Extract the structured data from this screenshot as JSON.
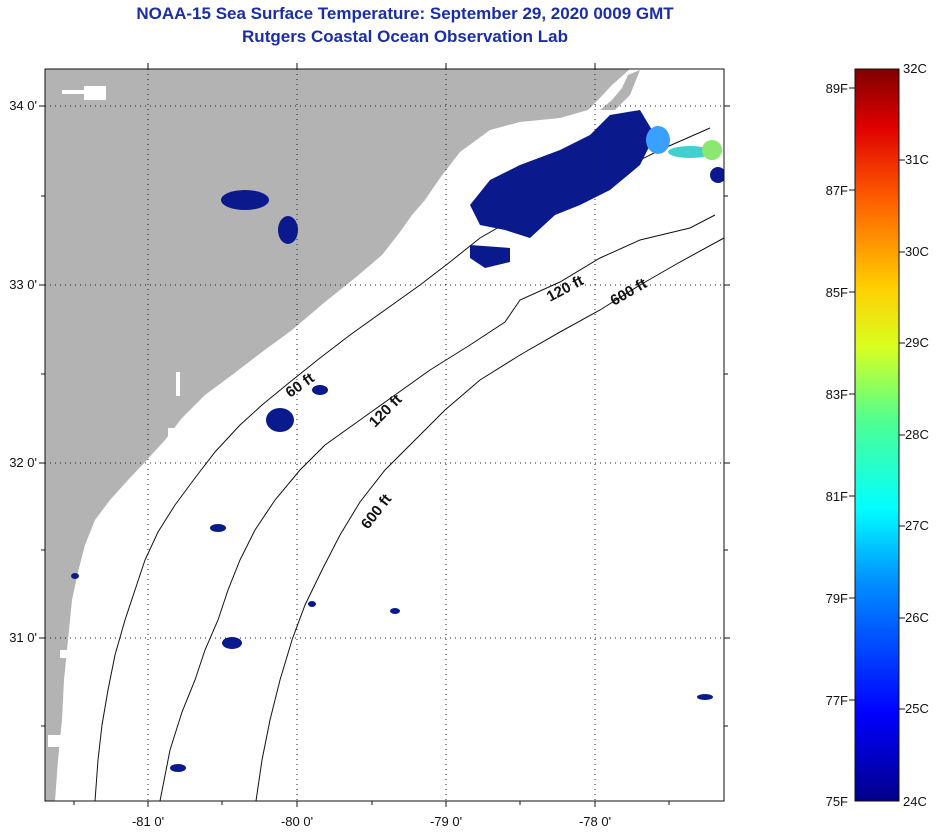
{
  "title": "NOAA-15 Sea Surface Temperature:  September 29, 2020 0009 GMT",
  "subtitle": "Rutgers Coastal Ocean Observation Lab",
  "lat_labels": [
    "34 0'",
    "33 0'",
    "32 0'",
    "31 0'"
  ],
  "lon_labels": [
    "-81 0'",
    "-80 0'",
    "-79 0'",
    "-78 0'"
  ],
  "contour_labels": [
    "60 ft",
    "120 ft",
    "600 ft",
    "120 ft",
    "600 ft"
  ],
  "colorbar": {
    "f_labels": [
      "89F",
      "87F",
      "85F",
      "83F",
      "81F",
      "79F",
      "77F",
      "75F"
    ],
    "c_labels": [
      "32C",
      "31C",
      "30C",
      "29C",
      "28C",
      "27C",
      "26C",
      "25C",
      "24C"
    ],
    "min_c": 24,
    "max_c": 32
  },
  "colors": {
    "land": "#b3b3b3",
    "cold_sst": "#0a1a8c",
    "title": "#1a2ea8"
  }
}
